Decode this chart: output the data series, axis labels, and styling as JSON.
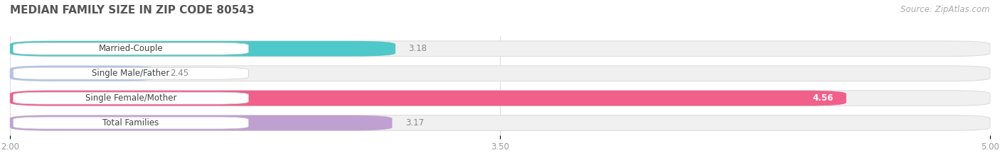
{
  "title": "Median Family Size in Zip Code 80543",
  "title_display": "MEDIAN FAMILY SIZE IN ZIP CODE 80543",
  "source": "Source: ZipAtlas.com",
  "categories": [
    "Married-Couple",
    "Single Male/Father",
    "Single Female/Mother",
    "Total Families"
  ],
  "values": [
    3.18,
    2.45,
    4.56,
    3.17
  ],
  "bar_colors": [
    "#4ec8c8",
    "#b0c4e8",
    "#f0608a",
    "#c0a0d0"
  ],
  "bar_bg_colors": [
    "#eeeeee",
    "#eeeeee",
    "#eeeeee",
    "#eeeeee"
  ],
  "xlim": [
    2.0,
    5.0
  ],
  "xticks": [
    2.0,
    3.5,
    5.0
  ],
  "title_fontsize": 11,
  "label_fontsize": 8.5,
  "value_fontsize": 8.5,
  "source_fontsize": 8.5,
  "bar_height": 0.62,
  "background_color": "#ffffff",
  "value_inside_threshold": 4.0
}
